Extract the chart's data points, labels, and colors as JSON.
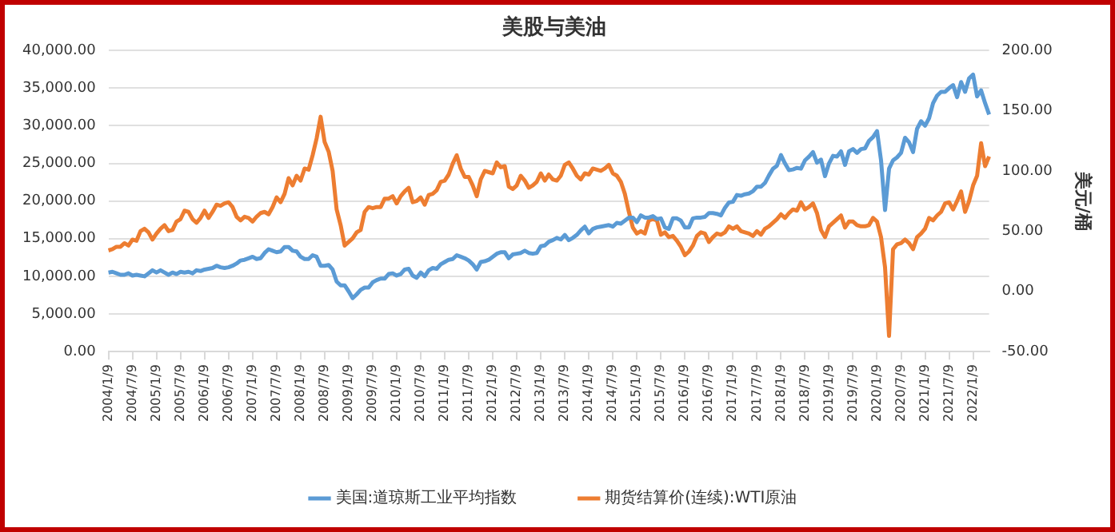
{
  "chart_data": {
    "type": "line",
    "title": "美股与美油",
    "y2label": "美元/桶",
    "categories": [
      "2004/1/9",
      null,
      null,
      null,
      null,
      null,
      "2004/7/9",
      null,
      null,
      null,
      null,
      null,
      "2005/1/9",
      null,
      null,
      null,
      null,
      null,
      "2005/7/9",
      null,
      null,
      null,
      null,
      null,
      "2006/1/9",
      null,
      null,
      null,
      null,
      null,
      "2006/7/9",
      null,
      null,
      null,
      null,
      null,
      "2007/1/9",
      null,
      null,
      null,
      null,
      null,
      "2007/7/9",
      null,
      null,
      null,
      null,
      null,
      "2008/1/9",
      null,
      null,
      null,
      null,
      null,
      "2008/7/9",
      null,
      null,
      null,
      null,
      null,
      "2009/1/9",
      null,
      null,
      null,
      null,
      null,
      "2009/7/9",
      null,
      null,
      null,
      null,
      null,
      "2010/1/9",
      null,
      null,
      null,
      null,
      null,
      "2010/7/9",
      null,
      null,
      null,
      null,
      null,
      "2011/1/9",
      null,
      null,
      null,
      null,
      null,
      "2011/7/9",
      null,
      null,
      null,
      null,
      null,
      "2012/1/9",
      null,
      null,
      null,
      null,
      null,
      "2012/7/9",
      null,
      null,
      null,
      null,
      null,
      "2013/1/9",
      null,
      null,
      null,
      null,
      null,
      "2013/7/9",
      null,
      null,
      null,
      null,
      null,
      "2014/1/9",
      null,
      null,
      null,
      null,
      null,
      "2014/7/9",
      null,
      null,
      null,
      null,
      null,
      "2015/1/9",
      null,
      null,
      null,
      null,
      null,
      "2015/7/9",
      null,
      null,
      null,
      null,
      null,
      "2016/1/9",
      null,
      null,
      null,
      null,
      null,
      "2016/7/9",
      null,
      null,
      null,
      null,
      null,
      "2017/1/9",
      null,
      null,
      null,
      null,
      null,
      "2017/7/9",
      null,
      null,
      null,
      null,
      null,
      "2018/1/9",
      null,
      null,
      null,
      null,
      null,
      "2018/7/9",
      null,
      null,
      null,
      null,
      null,
      "2019/1/9",
      null,
      null,
      null,
      null,
      null,
      "2019/7/9",
      null,
      null,
      null,
      null,
      null,
      "2020/1/9",
      null,
      null,
      null,
      null,
      null,
      "2020/7/9",
      null,
      null,
      null,
      null,
      null,
      "2021/1/9",
      null,
      null,
      null,
      null,
      null,
      "2021/7/9",
      null,
      null,
      null,
      null,
      null,
      "2022/1/9",
      null,
      null,
      null,
      null
    ],
    "series": [
      {
        "name": "美国:道琼斯工业平均指数",
        "color": "#5b9bd5",
        "values": [
          10500,
          10600,
          10400,
          10200,
          10200,
          10400,
          10100,
          10200,
          10100,
          10000,
          10400,
          10800,
          10500,
          10800,
          10500,
          10200,
          10500,
          10300,
          10600,
          10500,
          10600,
          10400,
          10800,
          10700,
          10900,
          11000,
          11100,
          11400,
          11200,
          11100,
          11200,
          11400,
          11700,
          12100,
          12200,
          12400,
          12600,
          12300,
          12400,
          13100,
          13600,
          13400,
          13200,
          13300,
          13900,
          13900,
          13400,
          13300,
          12600,
          12300,
          12300,
          12800,
          12600,
          11400,
          11400,
          11500,
          10900,
          9300,
          8800,
          8800,
          8000,
          7100,
          7600,
          8200,
          8500,
          8500,
          9200,
          9500,
          9700,
          9700,
          10300,
          10400,
          10100,
          10300,
          10900,
          11000,
          10100,
          9800,
          10500,
          10000,
          10800,
          11100,
          11000,
          11600,
          11900,
          12200,
          12300,
          12800,
          12600,
          12400,
          12100,
          11600,
          10900,
          11900,
          12000,
          12200,
          12600,
          13000,
          13200,
          13200,
          12400,
          12900,
          13000,
          13100,
          13400,
          13100,
          13000,
          13100,
          14000,
          14100,
          14600,
          14800,
          15100,
          14900,
          15500,
          14800,
          15100,
          15500,
          16100,
          16600,
          15700,
          16300,
          16500,
          16600,
          16700,
          16800,
          16600,
          17100,
          17000,
          17400,
          17800,
          17800,
          17200,
          18100,
          17800,
          17800,
          18000,
          17600,
          17700,
          16500,
          16300,
          17700,
          17700,
          17400,
          16500,
          16500,
          17700,
          17800,
          17800,
          17900,
          18400,
          18400,
          18300,
          18100,
          19100,
          19800,
          19900,
          20800,
          20700,
          20900,
          21000,
          21300,
          21900,
          21900,
          22400,
          23400,
          24300,
          24700,
          26100,
          25000,
          24100,
          24200,
          24400,
          24300,
          25400,
          25900,
          26500,
          25100,
          25500,
          23300,
          25000,
          26000,
          25900,
          26600,
          24800,
          26600,
          26900,
          26400,
          26900,
          27000,
          28000,
          28500,
          29300,
          25400,
          18800,
          24300,
          25400,
          25800,
          26400,
          28400,
          27800,
          26500,
          29600,
          30600,
          30000,
          31000,
          33000,
          34000,
          34500,
          34500,
          35000,
          35400,
          33800,
          35800,
          34500,
          36300,
          36800,
          33900,
          34700,
          33000,
          31500
        ]
      },
      {
        "name": "期货结算价(连续):WTI原油",
        "color": "#ed7d31",
        "axis": "y2",
        "values": [
          34,
          35,
          37,
          37,
          40,
          38,
          43,
          42,
          50,
          52,
          49,
          43,
          48,
          52,
          55,
          50,
          51,
          58,
          60,
          67,
          66,
          60,
          57,
          61,
          67,
          61,
          66,
          72,
          71,
          73,
          74,
          70,
          62,
          59,
          62,
          61,
          58,
          62,
          65,
          66,
          64,
          70,
          78,
          74,
          81,
          94,
          88,
          96,
          92,
          102,
          101,
          113,
          127,
          145,
          124,
          116,
          100,
          68,
          55,
          38,
          41,
          44,
          49,
          51,
          66,
          70,
          69,
          70,
          70,
          77,
          77,
          79,
          73,
          79,
          83,
          86,
          74,
          75,
          78,
          72,
          80,
          81,
          84,
          91,
          92,
          97,
          106,
          113,
          102,
          95,
          95,
          88,
          79,
          93,
          100,
          99,
          98,
          107,
          103,
          104,
          87,
          85,
          88,
          96,
          92,
          86,
          88,
          91,
          98,
          92,
          97,
          93,
          92,
          96,
          105,
          107,
          102,
          96,
          93,
          98,
          97,
          102,
          101,
          100,
          102,
          105,
          98,
          96,
          91,
          81,
          66,
          53,
          48,
          50,
          48,
          59,
          60,
          59,
          47,
          49,
          45,
          46,
          42,
          37,
          30,
          33,
          38,
          46,
          49,
          48,
          41,
          45,
          48,
          47,
          49,
          54,
          52,
          54,
          50,
          49,
          48,
          46,
          50,
          47,
          52,
          54,
          57,
          60,
          64,
          61,
          65,
          68,
          67,
          74,
          68,
          70,
          73,
          65,
          51,
          45,
          54,
          57,
          60,
          63,
          53,
          58,
          58,
          55,
          54,
          54,
          55,
          61,
          58,
          45,
          20,
          -37,
          35,
          39,
          40,
          43,
          40,
          35,
          45,
          48,
          52,
          61,
          59,
          63,
          66,
          73,
          74,
          68,
          75,
          83,
          66,
          75,
          88,
          96,
          123,
          104,
          112
        ]
      }
    ],
    "ylim": [
      0,
      40000
    ],
    "yticks": [
      {
        "value": 0,
        "label": "0.00"
      },
      {
        "value": 5000,
        "label": "5,000.00"
      },
      {
        "value": 10000,
        "label": "10,000.00"
      },
      {
        "value": 15000,
        "label": "15,000.00"
      },
      {
        "value": 20000,
        "label": "20,000.00"
      },
      {
        "value": 25000,
        "label": "25,000.00"
      },
      {
        "value": 30000,
        "label": "30,000.00"
      },
      {
        "value": 35000,
        "label": "35,000.00"
      },
      {
        "value": 40000,
        "label": "40,000.00"
      }
    ],
    "y2lim": [
      -50,
      200
    ],
    "y2ticks": [
      {
        "value": -50,
        "label": "-50.00"
      },
      {
        "value": 0,
        "label": "0.00"
      },
      {
        "value": 50,
        "label": "50.00"
      },
      {
        "value": 100,
        "label": "100.00"
      },
      {
        "value": 150,
        "label": "150.00"
      },
      {
        "value": 200,
        "label": "200.00"
      }
    ],
    "grid": "y",
    "legend": "bottom",
    "line_style": "solid"
  }
}
